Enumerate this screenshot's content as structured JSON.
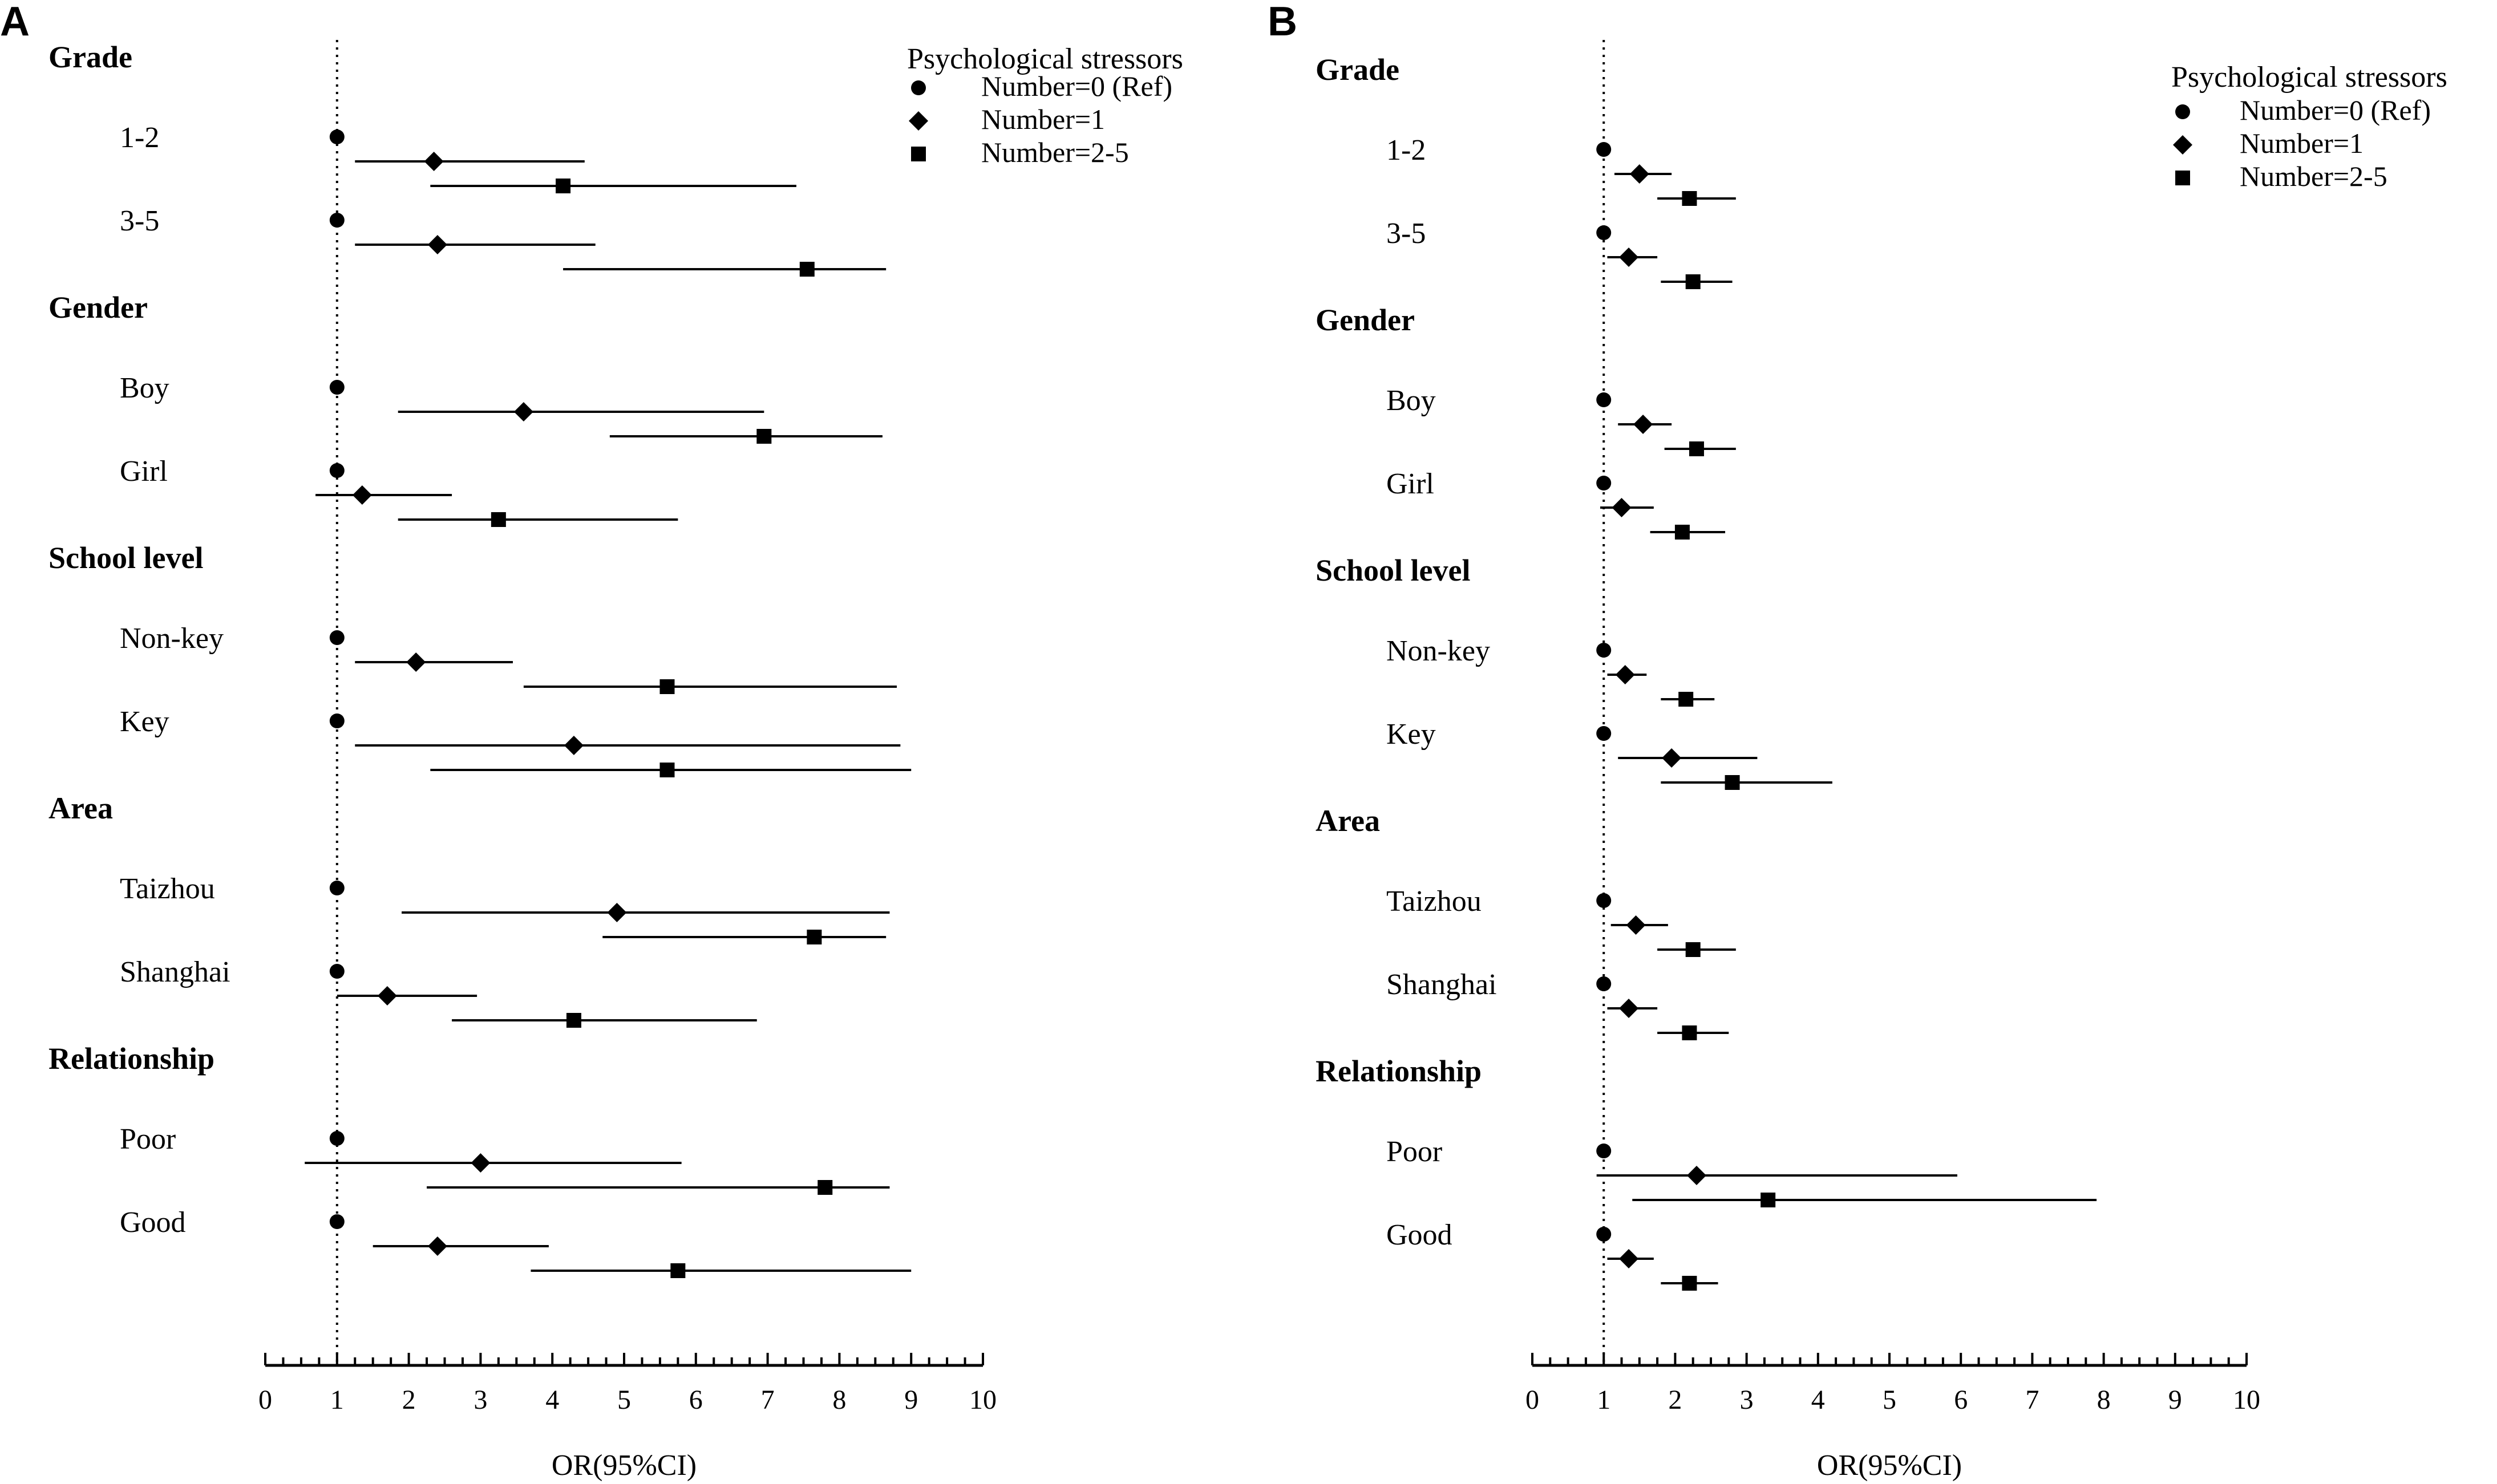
{
  "chart_data": [
    {
      "type": "forest",
      "panel": "A",
      "xlabel": "OR(95%CI)",
      "xlim": [
        0,
        10
      ],
      "xticks": [
        "0",
        "1",
        "2",
        "3",
        "4",
        "5",
        "6",
        "7",
        "8",
        "9",
        "10"
      ],
      "reference_line": 1,
      "legend": {
        "title": "Psychological stressors",
        "entries": [
          {
            "label": "Number=0 (Ref)",
            "marker": "circle"
          },
          {
            "label": "Number=1",
            "marker": "diamond"
          },
          {
            "label": "Number=2-5",
            "marker": "square"
          }
        ]
      },
      "groups": [
        {
          "name": "Grade",
          "subgroups": [
            {
              "label": "1-2",
              "points": [
                {
                  "series": "Number=0 (Ref)",
                  "or": 1.0,
                  "lo": null,
                  "hi": null
                },
                {
                  "series": "Number=1",
                  "or": 2.35,
                  "lo": 1.25,
                  "hi": 4.45
                },
                {
                  "series": "Number=2-5",
                  "or": 4.15,
                  "lo": 2.3,
                  "hi": 7.4
                }
              ]
            },
            {
              "label": "3-5",
              "points": [
                {
                  "series": "Number=0 (Ref)",
                  "or": 1.0,
                  "lo": null,
                  "hi": null
                },
                {
                  "series": "Number=1",
                  "or": 2.4,
                  "lo": 1.25,
                  "hi": 4.6
                },
                {
                  "series": "Number=2-5",
                  "or": 7.55,
                  "lo": 4.15,
                  "hi": 8.65
                }
              ]
            }
          ]
        },
        {
          "name": "Gender",
          "subgroups": [
            {
              "label": "Boy",
              "points": [
                {
                  "series": "Number=0 (Ref)",
                  "or": 1.0,
                  "lo": null,
                  "hi": null
                },
                {
                  "series": "Number=1",
                  "or": 3.6,
                  "lo": 1.85,
                  "hi": 6.95
                },
                {
                  "series": "Number=2-5",
                  "or": 6.95,
                  "lo": 4.8,
                  "hi": 8.6
                }
              ]
            },
            {
              "label": "Girl",
              "points": [
                {
                  "series": "Number=0 (Ref)",
                  "or": 1.0,
                  "lo": null,
                  "hi": null
                },
                {
                  "series": "Number=1",
                  "or": 1.35,
                  "lo": 0.7,
                  "hi": 2.6
                },
                {
                  "series": "Number=2-5",
                  "or": 3.25,
                  "lo": 1.85,
                  "hi": 5.75
                }
              ]
            }
          ]
        },
        {
          "name": "School level",
          "subgroups": [
            {
              "label": "Non-key",
              "points": [
                {
                  "series": "Number=0 (Ref)",
                  "or": 1.0,
                  "lo": null,
                  "hi": null
                },
                {
                  "series": "Number=1",
                  "or": 2.1,
                  "lo": 1.25,
                  "hi": 3.45
                },
                {
                  "series": "Number=2-5",
                  "or": 5.6,
                  "lo": 3.6,
                  "hi": 8.8
                }
              ]
            },
            {
              "label": "Key",
              "points": [
                {
                  "series": "Number=0 (Ref)",
                  "or": 1.0,
                  "lo": null,
                  "hi": null
                },
                {
                  "series": "Number=1",
                  "or": 4.3,
                  "lo": 1.25,
                  "hi": 8.85
                },
                {
                  "series": "Number=2-5",
                  "or": 5.6,
                  "lo": 2.3,
                  "hi": 9.0
                }
              ]
            }
          ]
        },
        {
          "name": "Area",
          "subgroups": [
            {
              "label": "Taizhou",
              "points": [
                {
                  "series": "Number=0 (Ref)",
                  "or": 1.0,
                  "lo": null,
                  "hi": null
                },
                {
                  "series": "Number=1",
                  "or": 4.9,
                  "lo": 1.9,
                  "hi": 8.7
                },
                {
                  "series": "Number=2-5",
                  "or": 7.65,
                  "lo": 4.7,
                  "hi": 8.65
                }
              ]
            },
            {
              "label": "Shanghai",
              "points": [
                {
                  "series": "Number=0 (Ref)",
                  "or": 1.0,
                  "lo": null,
                  "hi": null
                },
                {
                  "series": "Number=1",
                  "or": 1.7,
                  "lo": 1.0,
                  "hi": 2.95
                },
                {
                  "series": "Number=2-5",
                  "or": 4.3,
                  "lo": 2.6,
                  "hi": 6.85
                }
              ]
            }
          ]
        },
        {
          "name": "Relationship",
          "subgroups": [
            {
              "label": "Poor",
              "points": [
                {
                  "series": "Number=0 (Ref)",
                  "or": 1.0,
                  "lo": null,
                  "hi": null
                },
                {
                  "series": "Number=1",
                  "or": 3.0,
                  "lo": 0.55,
                  "hi": 5.8
                },
                {
                  "series": "Number=2-5",
                  "or": 7.8,
                  "lo": 2.25,
                  "hi": 8.7
                }
              ]
            },
            {
              "label": "Good",
              "points": [
                {
                  "series": "Number=0 (Ref)",
                  "or": 1.0,
                  "lo": null,
                  "hi": null
                },
                {
                  "series": "Number=1",
                  "or": 2.4,
                  "lo": 1.5,
                  "hi": 3.95
                },
                {
                  "series": "Number=2-5",
                  "or": 5.75,
                  "lo": 3.7,
                  "hi": 9.0
                }
              ]
            }
          ]
        }
      ]
    },
    {
      "type": "forest",
      "panel": "B",
      "xlabel": "OR(95%CI)",
      "xlim": [
        0,
        10
      ],
      "xticks": [
        "0",
        "1",
        "2",
        "3",
        "4",
        "5",
        "6",
        "7",
        "8",
        "9",
        "10"
      ],
      "reference_line": 1,
      "legend": {
        "title": "Psychological stressors",
        "entries": [
          {
            "label": "Number=0 (Ref)",
            "marker": "circle"
          },
          {
            "label": "Number=1",
            "marker": "diamond"
          },
          {
            "label": "Number=2-5",
            "marker": "square"
          }
        ]
      },
      "groups": [
        {
          "name": "Grade",
          "subgroups": [
            {
              "label": "1-2",
              "points": [
                {
                  "series": "Number=0 (Ref)",
                  "or": 1.0,
                  "lo": null,
                  "hi": null
                },
                {
                  "series": "Number=1",
                  "or": 1.5,
                  "lo": 1.15,
                  "hi": 1.95
                },
                {
                  "series": "Number=2-5",
                  "or": 2.2,
                  "lo": 1.75,
                  "hi": 2.85
                }
              ]
            },
            {
              "label": "3-5",
              "points": [
                {
                  "series": "Number=0 (Ref)",
                  "or": 1.0,
                  "lo": null,
                  "hi": null
                },
                {
                  "series": "Number=1",
                  "or": 1.35,
                  "lo": 1.05,
                  "hi": 1.75
                },
                {
                  "series": "Number=2-5",
                  "or": 2.25,
                  "lo": 1.8,
                  "hi": 2.8
                }
              ]
            }
          ]
        },
        {
          "name": "Gender",
          "subgroups": [
            {
              "label": "Boy",
              "points": [
                {
                  "series": "Number=0 (Ref)",
                  "or": 1.0,
                  "lo": null,
                  "hi": null
                },
                {
                  "series": "Number=1",
                  "or": 1.55,
                  "lo": 1.2,
                  "hi": 1.95
                },
                {
                  "series": "Number=2-5",
                  "or": 2.3,
                  "lo": 1.85,
                  "hi": 2.85
                }
              ]
            },
            {
              "label": "Girl",
              "points": [
                {
                  "series": "Number=0 (Ref)",
                  "or": 1.0,
                  "lo": null,
                  "hi": null
                },
                {
                  "series": "Number=1",
                  "or": 1.25,
                  "lo": 0.95,
                  "hi": 1.7
                },
                {
                  "series": "Number=2-5",
                  "or": 2.1,
                  "lo": 1.65,
                  "hi": 2.7
                }
              ]
            }
          ]
        },
        {
          "name": "School level",
          "subgroups": [
            {
              "label": "Non-key",
              "points": [
                {
                  "series": "Number=0 (Ref)",
                  "or": 1.0,
                  "lo": null,
                  "hi": null
                },
                {
                  "series": "Number=1",
                  "or": 1.3,
                  "lo": 1.05,
                  "hi": 1.6
                },
                {
                  "series": "Number=2-5",
                  "or": 2.15,
                  "lo": 1.8,
                  "hi": 2.55
                }
              ]
            },
            {
              "label": "Key",
              "points": [
                {
                  "series": "Number=0 (Ref)",
                  "or": 1.0,
                  "lo": null,
                  "hi": null
                },
                {
                  "series": "Number=1",
                  "or": 1.95,
                  "lo": 1.2,
                  "hi": 3.15
                },
                {
                  "series": "Number=2-5",
                  "or": 2.8,
                  "lo": 1.8,
                  "hi": 4.2
                }
              ]
            }
          ]
        },
        {
          "name": "Area",
          "subgroups": [
            {
              "label": "Taizhou",
              "points": [
                {
                  "series": "Number=0 (Ref)",
                  "or": 1.0,
                  "lo": null,
                  "hi": null
                },
                {
                  "series": "Number=1",
                  "or": 1.45,
                  "lo": 1.1,
                  "hi": 1.9
                },
                {
                  "series": "Number=2-5",
                  "or": 2.25,
                  "lo": 1.75,
                  "hi": 2.85
                }
              ]
            },
            {
              "label": "Shanghai",
              "points": [
                {
                  "series": "Number=0 (Ref)",
                  "or": 1.0,
                  "lo": null,
                  "hi": null
                },
                {
                  "series": "Number=1",
                  "or": 1.35,
                  "lo": 1.05,
                  "hi": 1.75
                },
                {
                  "series": "Number=2-5",
                  "or": 2.2,
                  "lo": 1.75,
                  "hi": 2.75
                }
              ]
            }
          ]
        },
        {
          "name": "Relationship",
          "subgroups": [
            {
              "label": "Poor",
              "points": [
                {
                  "series": "Number=0 (Ref)",
                  "or": 1.0,
                  "lo": null,
                  "hi": null
                },
                {
                  "series": "Number=1",
                  "or": 2.3,
                  "lo": 0.9,
                  "hi": 5.95
                },
                {
                  "series": "Number=2-5",
                  "or": 3.3,
                  "lo": 1.4,
                  "hi": 7.9
                }
              ]
            },
            {
              "label": "Good",
              "points": [
                {
                  "series": "Number=0 (Ref)",
                  "or": 1.0,
                  "lo": null,
                  "hi": null
                },
                {
                  "series": "Number=1",
                  "or": 1.35,
                  "lo": 1.05,
                  "hi": 1.7
                },
                {
                  "series": "Number=2-5",
                  "or": 2.2,
                  "lo": 1.8,
                  "hi": 2.6
                }
              ]
            }
          ]
        }
      ]
    }
  ]
}
